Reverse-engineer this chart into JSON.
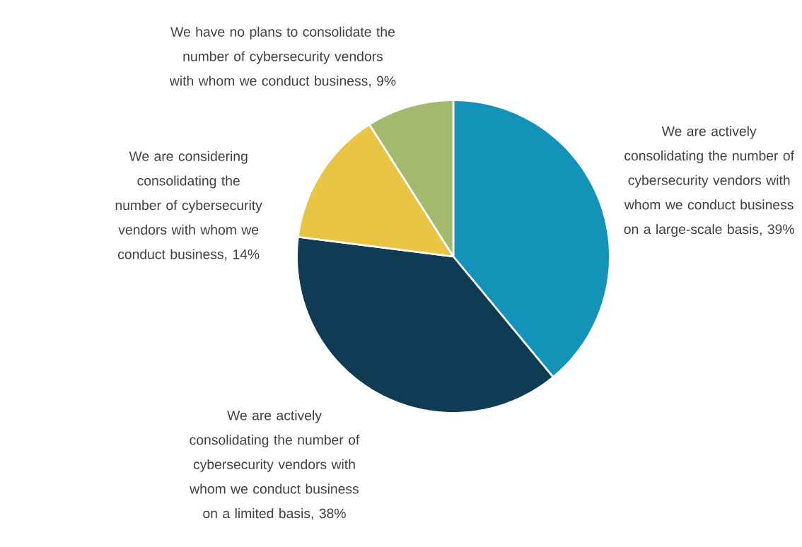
{
  "chart_data": {
    "type": "pie",
    "categories": [
      "We are actively consolidating the number of cybersecurity vendors with whom we conduct business on a large-scale basis, 39%",
      "We are actively consolidating the number of cybersecurity vendors with whom we conduct business on a limited basis, 38%",
      "We are considering consolidating the number of cybersecurity vendors with whom we conduct business, 14%",
      "We have no plans to consolidate the number of cybersecurity vendors with whom we conduct business, 9%"
    ],
    "values": [
      39,
      38,
      14,
      9
    ],
    "colors": [
      "#1493b8",
      "#0f3c54",
      "#e8c543",
      "#a3b96e"
    ]
  }
}
